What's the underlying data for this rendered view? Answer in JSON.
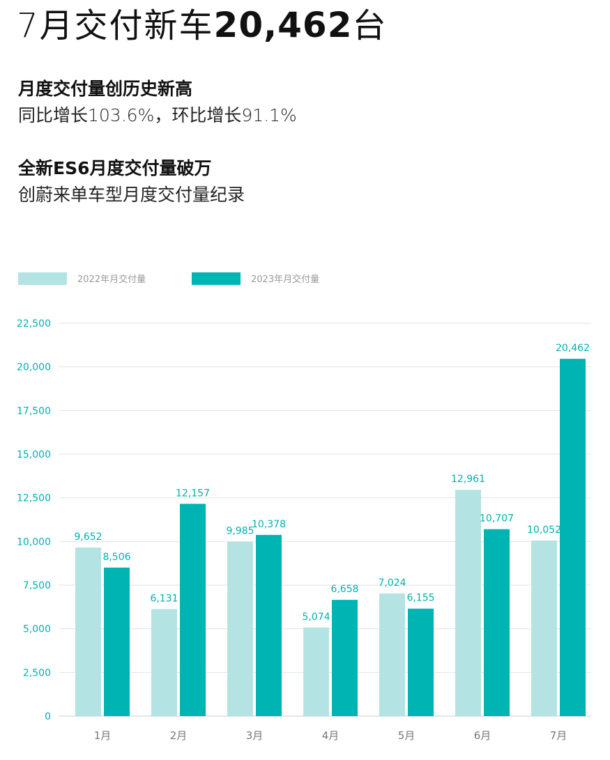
{
  "headline": {
    "prefix": "7月交付新车",
    "number": "20,462",
    "suffix": "台"
  },
  "highlights": [
    {
      "title": "月度交付量创历史新高",
      "subtitle": "同比增长103.6%，环比增长91.1%"
    },
    {
      "title": "全新ES6月度交付量破万",
      "subtitle": "创蔚来单车型月度交付量纪录"
    }
  ],
  "colors": {
    "series_2022": "#b3e3e3",
    "series_2023": "#00b4b4",
    "grid": "#e2e2e2",
    "axis_text": "#00b0b0",
    "month_text": "#777777"
  },
  "chart_data": {
    "type": "bar",
    "categories": [
      "1月",
      "2月",
      "3月",
      "4月",
      "5月",
      "6月",
      "7月"
    ],
    "series": [
      {
        "name": "2022年月交付量",
        "values": [
          9652,
          6131,
          9985,
          5074,
          7024,
          12961,
          10052
        ],
        "labels": [
          "9,652",
          "6,131",
          "9,985",
          "5,074",
          "7,024",
          "12,961",
          "10,052"
        ]
      },
      {
        "name": "2023年月交付量",
        "values": [
          8506,
          12157,
          10378,
          6658,
          6155,
          10707,
          20462
        ],
        "labels": [
          "8,506",
          "12,157",
          "10,378",
          "6,658",
          "6,155",
          "10,707",
          "20,462"
        ]
      }
    ],
    "ylim": [
      0,
      22500
    ],
    "yticks": [
      0,
      2500,
      5000,
      7500,
      10000,
      12500,
      15000,
      17500,
      20000,
      22500
    ],
    "ytick_labels": [
      "0",
      "2,500",
      "5,000",
      "7,500",
      "10,000",
      "12,500",
      "15,000",
      "17,500",
      "20,000",
      "22,500"
    ],
    "grid": true,
    "legend": "top-left"
  }
}
